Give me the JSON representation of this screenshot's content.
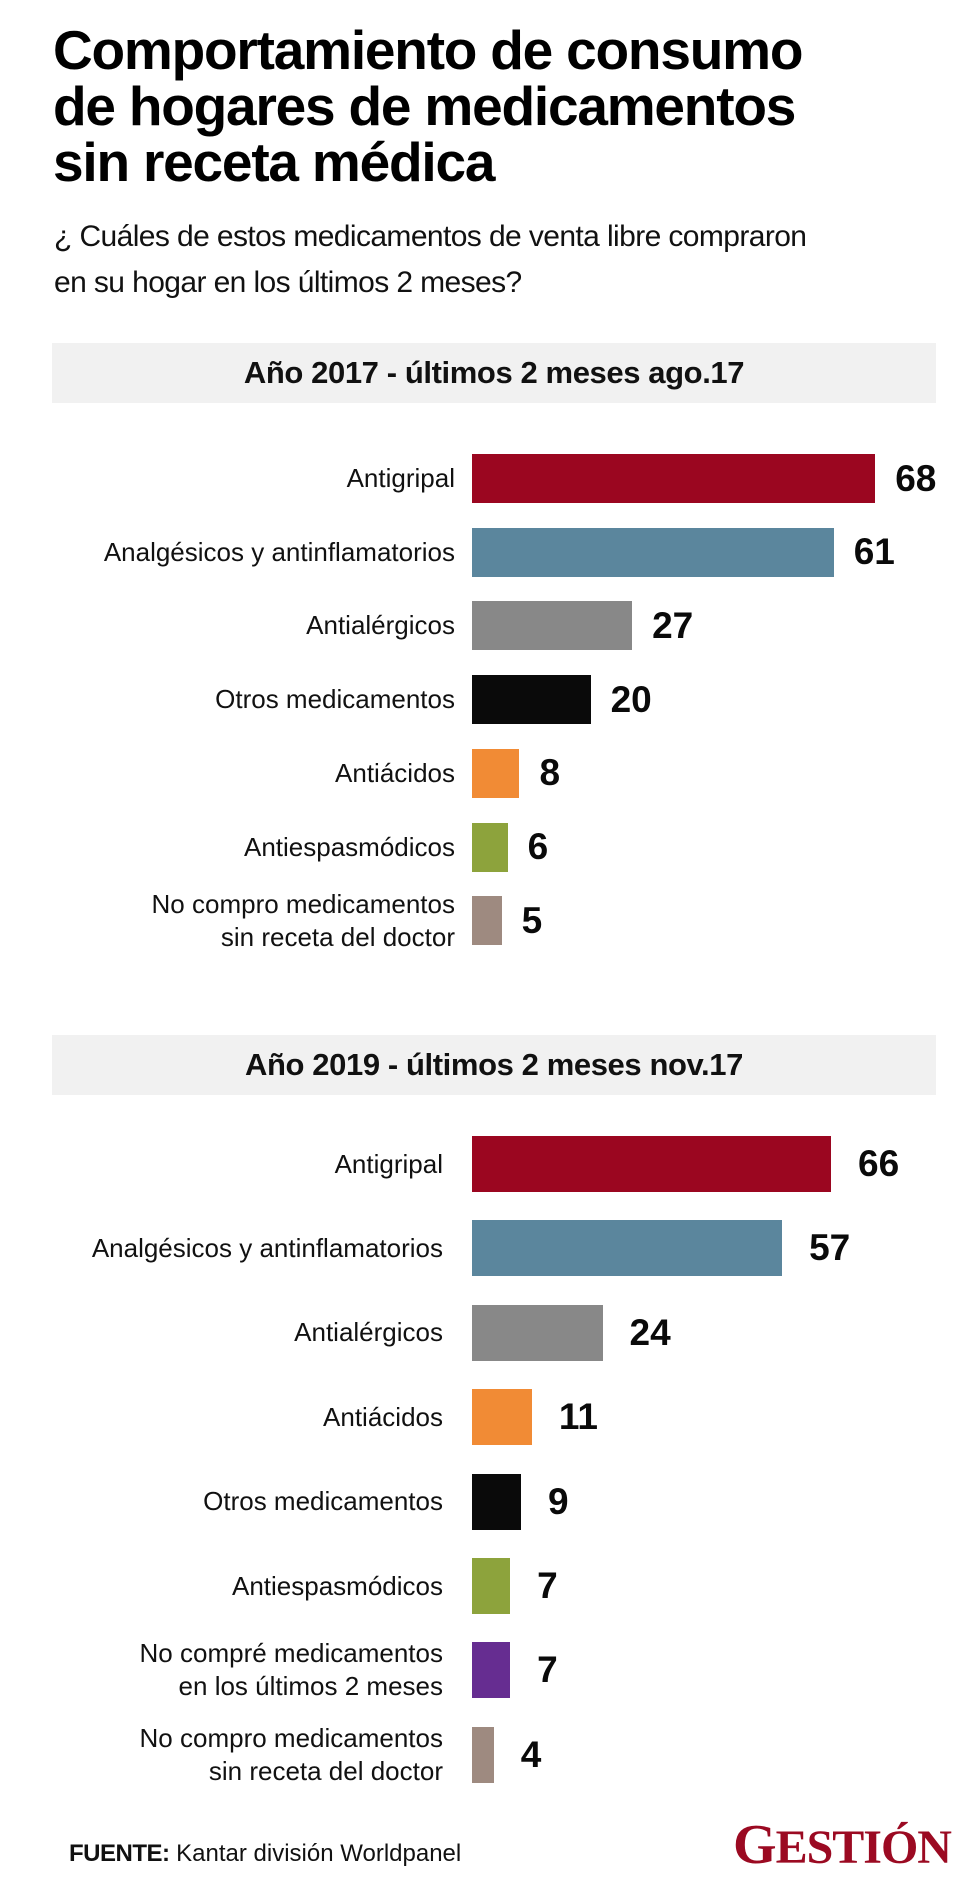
{
  "header": {
    "title_lines": [
      "Comportamiento de consumo",
      "de hogares de medicamentos",
      "sin receta médica"
    ],
    "subtitle_lines": [
      "¿ Cuáles de estos medicamentos de venta libre compraron",
      "en su hogar en los últimos 2 meses?"
    ]
  },
  "colors": {
    "antigripal": "#9b0620",
    "analgesicos": "#5b869d",
    "antialergicos": "#888888",
    "otros": "#0a0a0a",
    "antiacidos": "#f18b35",
    "antiespasmodicos": "#8da33c",
    "no_compre": "#662d91",
    "sin_receta": "#9e8a80",
    "panel_bg": "#f1f1f1",
    "brand": "#9b0a22"
  },
  "chart_data": [
    {
      "type": "bar",
      "orientation": "horizontal",
      "title": "Año 2017 - últimos 2 meses ago.17",
      "xlabel": "",
      "ylabel": "",
      "unit": "%",
      "grid": false,
      "categories": [
        [
          "Antigripal"
        ],
        [
          "Analgésicos y antinflamatorios"
        ],
        [
          "Antialérgicos"
        ],
        [
          "Otros medicamentos"
        ],
        [
          "Antiácidos"
        ],
        [
          "Antiespasmódicos"
        ],
        [
          "No compro medicamentos",
          "sin receta del doctor"
        ]
      ],
      "values": [
        68,
        61,
        27,
        20,
        8,
        6,
        5
      ],
      "value_labels": [
        "68",
        "61",
        "27",
        "20",
        "8",
        "6",
        "5"
      ],
      "color_keys": [
        "antigripal",
        "analgesicos",
        "antialergicos",
        "otros",
        "antiacidos",
        "antiespasmodicos",
        "sin_receta"
      ]
    },
    {
      "type": "bar",
      "orientation": "horizontal",
      "title": "Año 2019 - últimos 2 meses nov.17",
      "xlabel": "",
      "ylabel": "",
      "unit": "%",
      "grid": false,
      "categories": [
        [
          "Antigripal"
        ],
        [
          "Analgésicos y antinflamatorios"
        ],
        [
          "Antialérgicos"
        ],
        [
          "Antiácidos"
        ],
        [
          "Otros medicamentos"
        ],
        [
          "Antiespasmódicos"
        ],
        [
          "No compré medicamentos",
          "en los últimos 2 meses"
        ],
        [
          "No compro medicamentos",
          "sin receta del doctor"
        ]
      ],
      "values": [
        66,
        57,
        24,
        11,
        9,
        7,
        7,
        4
      ],
      "value_labels": [
        "66",
        "57",
        "24",
        "11",
        "9",
        "7",
        "7",
        "4"
      ],
      "color_keys": [
        "antigripal",
        "analgesicos",
        "antialergicos",
        "antiacidos",
        "otros",
        "antiespasmodicos",
        "no_compre",
        "sin_receta"
      ]
    }
  ],
  "footer": {
    "source_label": "FUENTE:",
    "source_text": " Kantar división Worldpanel",
    "logo_first": "G",
    "logo_rest": "ESTIÓN"
  }
}
